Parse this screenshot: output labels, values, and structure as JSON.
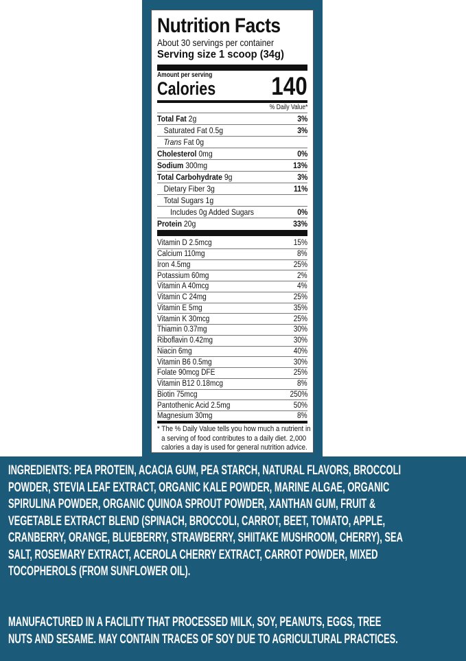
{
  "label": {
    "title": "Nutrition Facts",
    "servings": "About 30 servings per container",
    "serving_size": "Serving size  1 scoop (34g)",
    "amount_per_serving": "Amount per serving",
    "calories_label": "Calories",
    "calories_value": "140",
    "daily_value_header": "% Daily Value*",
    "nutrients": [
      {
        "name": "Total Fat",
        "amount": "2g",
        "dv": "3%",
        "bold": true,
        "indent": 0
      },
      {
        "name": "Saturated Fat",
        "amount": "0.5g",
        "dv": "3%",
        "bold": false,
        "indent": 1
      },
      {
        "name": "Trans",
        "amount": "Fat 0g",
        "dv": "",
        "bold": false,
        "indent": 1,
        "italic": true
      },
      {
        "name": "Cholesterol",
        "amount": "0mg",
        "dv": "0%",
        "bold": true,
        "indent": 0
      },
      {
        "name": "Sodium",
        "amount": "300mg",
        "dv": "13%",
        "bold": true,
        "indent": 0
      },
      {
        "name": "Total Carbohydrate",
        "amount": "9g",
        "dv": "3%",
        "bold": true,
        "indent": 0
      },
      {
        "name": "Dietary Fiber",
        "amount": "3g",
        "dv": "11%",
        "bold": false,
        "indent": 1
      },
      {
        "name": "Total Sugars",
        "amount": "1g",
        "dv": "",
        "bold": false,
        "indent": 1
      },
      {
        "name": "Includes 0g Added Sugars",
        "amount": "",
        "dv": "0%",
        "bold": false,
        "indent": 2
      },
      {
        "name": "Protein",
        "amount": "20g",
        "dv": "33%",
        "bold": true,
        "indent": 0
      }
    ],
    "vitamins": [
      {
        "name": "Vitamin D 2.5mcg",
        "dv": "15%"
      },
      {
        "name": "Calcium 110mg",
        "dv": "8%"
      },
      {
        "name": "Iron 4.5mg",
        "dv": "25%"
      },
      {
        "name": "Potassium 60mg",
        "dv": "2%"
      },
      {
        "name": "Vitamin A 40mcg",
        "dv": "4%"
      },
      {
        "name": "Vitamin C 24mg",
        "dv": "25%"
      },
      {
        "name": "Vitamin E 5mg",
        "dv": "35%"
      },
      {
        "name": "Vitamin K 30mcg",
        "dv": "25%"
      },
      {
        "name": "Thiamin 0.37mg",
        "dv": "30%"
      },
      {
        "name": "Riboflavin 0.42mg",
        "dv": "30%"
      },
      {
        "name": "Niacin 6mg",
        "dv": "40%"
      },
      {
        "name": "Vitamin B6 0.5mg",
        "dv": "30%"
      },
      {
        "name": "Folate 90mcg DFE",
        "dv": "25%"
      },
      {
        "name": "Vitamin B12 0.18mcg",
        "dv": "8%"
      },
      {
        "name": "Biotin 75mcg",
        "dv": "250%"
      },
      {
        "name": "Pantothenic Acid 2.5mg",
        "dv": "50%"
      },
      {
        "name": "Magnesium 30mg",
        "dv": "8%"
      }
    ],
    "footnote": [
      "* The % Daily Value tells you how much a nutrient in",
      "a serving of food contributes to a daily diet. 2,000",
      "calories a day is used for general nutrition advice."
    ]
  },
  "ingredients_lines": [
    "INGREDIENTS: PEA PROTEIN, ACACIA GUM, PEA STARCH, NATURAL FLAVORS,  BROCCOLI",
    "POWDER, STEVIA LEAF EXTRACT, ORGANIC KALE POWDER, MARINE ALGAE,  ORGANIC",
    "SPIRULINA POWDER, ORGANIC QUINOA SPROUT POWDER, XANTHAN GUM, FRUIT &",
    "VEGETABLE EXTRACT BLEND (SPINACH, BROCCOLI, CARROT, BEET, TOMATO, APPLE,",
    "CRANBERRY, ORANGE, BLUEBERRY, STRAWBERRY, SHIITAKE MUSHROOM, CHERRY), SEA",
    "SALT, ROSEMARY EXTRACT, ACEROLA CHERRY EXTRACT, CARROT POWDER, MIXED",
    "TOCOPHEROLS (FROM SUNFLOWER OIL)."
  ],
  "allergen_lines": [
    "MANUFACTURED IN A FACILITY THAT PROCESSED MILK, SOY, PEANUTS, EGGS, TREE",
    "NUTS AND SESAME. MAY CONTAIN TRACES OF SOY DUE TO AGRICULTURAL PRACTICES."
  ],
  "colors": {
    "panel": "#1c5a79",
    "label_bg": "#ffffff",
    "text": "#111111"
  }
}
